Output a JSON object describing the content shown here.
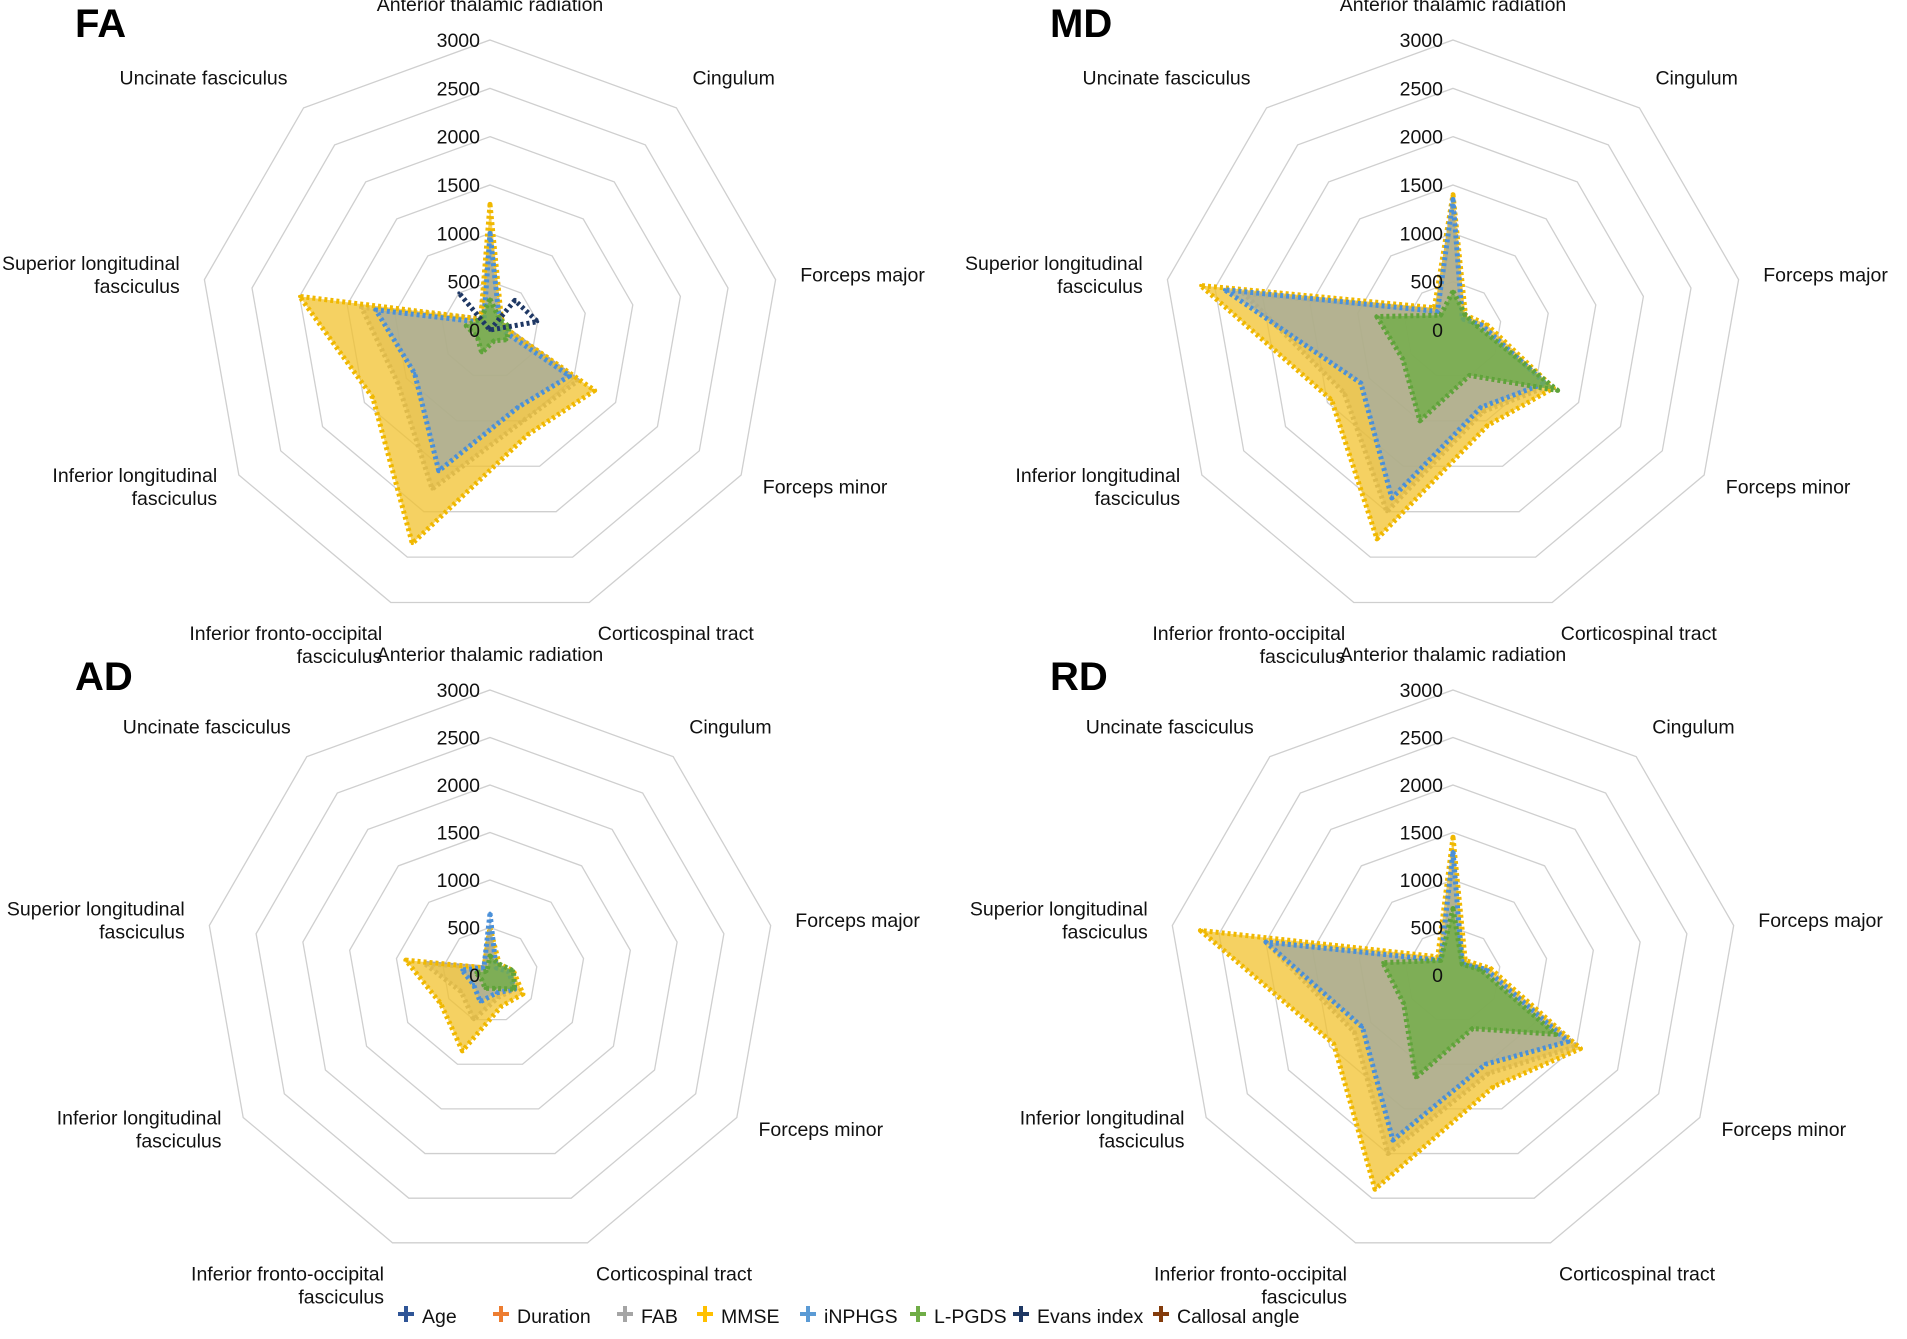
{
  "chart_data": [
    {
      "type": "radar",
      "title": "FA",
      "axes": [
        "Anterior thalamic radiation",
        "Cingulum",
        "Forceps major",
        "Forceps minor",
        "Corticospinal tract",
        "Inferior fronto-occipital fasciculus",
        "Inferior longitudinal fasciculus",
        "Superior longitudinal fasciculus",
        "Uncinate fasciculus"
      ],
      "axis_label_lines": [
        [
          "Anterior thalamic radiation"
        ],
        [
          "Cingulum"
        ],
        [
          "Forceps major"
        ],
        [
          "Forceps minor"
        ],
        [
          "Corticospinal tract"
        ],
        [
          "Inferior fronto-occipital",
          "fasciculus"
        ],
        [
          "Inferior longitudinal",
          "fasciculus"
        ],
        [
          "Superior longitudinal",
          "fasciculus"
        ],
        [
          "Uncinate fasciculus"
        ]
      ],
      "rlim": [
        0,
        3000
      ],
      "ticks": [
        "0",
        "500",
        "1000",
        "1500",
        "2000",
        "2500",
        "3000"
      ],
      "series": [
        {
          "name": "Age",
          "values": [
            0,
            0,
            0,
            0,
            0,
            0,
            0,
            0,
            0
          ]
        },
        {
          "name": "Duration",
          "values": [
            0,
            0,
            0,
            0,
            0,
            0,
            0,
            0,
            0
          ]
        },
        {
          "name": "FAB",
          "values": [
            950,
            150,
            150,
            1050,
            1000,
            1750,
            1100,
            1350,
            150
          ]
        },
        {
          "name": "MMSE",
          "values": [
            1300,
            180,
            150,
            1250,
            1150,
            2350,
            1400,
            2000,
            150
          ]
        },
        {
          "name": "iNPHGS",
          "values": [
            1000,
            150,
            100,
            950,
            850,
            1550,
            900,
            1200,
            100
          ]
        },
        {
          "name": "L-PGDS",
          "values": [
            320,
            150,
            200,
            200,
            120,
            250,
            150,
            250,
            150
          ]
        },
        {
          "name": "Evans index",
          "values": [
            0,
            400,
            500,
            0,
            0,
            0,
            0,
            0,
            500
          ]
        },
        {
          "name": "Callosal angle",
          "values": [
            0,
            0,
            0,
            0,
            0,
            0,
            0,
            0,
            0
          ]
        }
      ]
    },
    {
      "type": "radar",
      "title": "MD",
      "axes": [
        "Anterior thalamic radiation",
        "Cingulum",
        "Forceps major",
        "Forceps minor",
        "Corticospinal tract",
        "Inferior fronto-occipital fasciculus",
        "Inferior longitudinal fasciculus",
        "Superior longitudinal fasciculus",
        "Uncinate fasciculus"
      ],
      "axis_label_lines": [
        [
          "Anterior thalamic radiation"
        ],
        [
          "Cingulum"
        ],
        [
          "Forceps major"
        ],
        [
          "Forceps minor"
        ],
        [
          "Corticospinal tract"
        ],
        [
          "Inferior fronto-occipital",
          "fasciculus"
        ],
        [
          "Inferior longitudinal",
          "fasciculus"
        ],
        [
          "Superior longitudinal",
          "fasciculus"
        ],
        [
          "Uncinate fasciculus"
        ]
      ],
      "rlim": [
        0,
        3000
      ],
      "ticks": [
        "0",
        "500",
        "1000",
        "1500",
        "2000",
        "2500",
        "3000"
      ],
      "series": [
        {
          "name": "Age",
          "values": [
            0,
            0,
            0,
            0,
            0,
            0,
            0,
            0,
            0
          ]
        },
        {
          "name": "Duration",
          "values": [
            0,
            0,
            0,
            0,
            0,
            0,
            0,
            0,
            0
          ]
        },
        {
          "name": "FAB",
          "values": [
            1300,
            150,
            300,
            1150,
            900,
            2000,
            1300,
            2200,
            250
          ]
        },
        {
          "name": "MMSE",
          "values": [
            1400,
            200,
            350,
            1200,
            1050,
            2300,
            1450,
            2650,
            300
          ]
        },
        {
          "name": "iNPHGS",
          "values": [
            1350,
            150,
            300,
            1100,
            850,
            1850,
            1100,
            2400,
            250
          ]
        },
        {
          "name": "L-PGDS",
          "values": [
            400,
            200,
            250,
            1250,
            500,
            1000,
            600,
            800,
            200
          ]
        },
        {
          "name": "Evans index",
          "values": [
            0,
            0,
            0,
            0,
            0,
            0,
            0,
            0,
            0
          ]
        },
        {
          "name": "Callosal angle",
          "values": [
            0,
            0,
            0,
            0,
            0,
            0,
            0,
            0,
            0
          ]
        }
      ]
    },
    {
      "type": "radar",
      "title": "AD",
      "axes": [
        "Anterior thalamic radiation",
        "Cingulum",
        "Forceps major",
        "Forceps minor",
        "Corticospinal tract",
        "Inferior fronto-occipital fasciculus",
        "Inferior longitudinal fasciculus",
        "Superior longitudinal fasciculus",
        "Uncinate fasciculus"
      ],
      "axis_label_lines": [
        [
          "Anterior thalamic radiation"
        ],
        [
          "Cingulum"
        ],
        [
          "Forceps major"
        ],
        [
          "Forceps minor"
        ],
        [
          "Corticospinal tract"
        ],
        [
          "Inferior fronto-occipital",
          "fasciculus"
        ],
        [
          "Inferior longitudinal",
          "fasciculus"
        ],
        [
          "Superior longitudinal",
          "fasciculus"
        ],
        [
          "Uncinate fasciculus"
        ]
      ],
      "rlim": [
        0,
        3000
      ],
      "ticks": [
        "0",
        "500",
        "1000",
        "1500",
        "2000",
        "2500",
        "3000"
      ],
      "series": [
        {
          "name": "Age",
          "values": [
            0,
            0,
            0,
            0,
            0,
            0,
            0,
            0,
            0
          ]
        },
        {
          "name": "Duration",
          "values": [
            0,
            0,
            0,
            0,
            0,
            0,
            0,
            0,
            0
          ]
        },
        {
          "name": "FAB",
          "values": [
            450,
            100,
            200,
            300,
            250,
            500,
            350,
            700,
            100
          ]
        },
        {
          "name": "MMSE",
          "values": [
            500,
            150,
            250,
            400,
            350,
            850,
            600,
            900,
            100
          ]
        },
        {
          "name": "iNPHGS",
          "values": [
            650,
            100,
            200,
            300,
            200,
            300,
            200,
            300,
            100
          ]
        },
        {
          "name": "L-PGDS",
          "values": [
            200,
            150,
            250,
            300,
            150,
            150,
            100,
            150,
            50
          ]
        },
        {
          "name": "Evans index",
          "values": [
            0,
            0,
            0,
            0,
            0,
            0,
            0,
            0,
            0
          ]
        },
        {
          "name": "Callosal angle",
          "values": [
            0,
            0,
            0,
            0,
            0,
            0,
            0,
            0,
            0
          ]
        }
      ]
    },
    {
      "type": "radar",
      "title": "RD",
      "axes": [
        "Anterior thalamic radiation",
        "Cingulum",
        "Forceps major",
        "Forceps minor",
        "Corticospinal tract",
        "Inferior fronto-occipital fasciculus",
        "Inferior longitudinal fasciculus",
        "Superior longitudinal fasciculus",
        "Uncinate fasciculus"
      ],
      "axis_label_lines": [
        [
          "Anterior thalamic radiation"
        ],
        [
          "Cingulum"
        ],
        [
          "Forceps major"
        ],
        [
          "Forceps minor"
        ],
        [
          "Corticospinal tract"
        ],
        [
          "Inferior fronto-occipital",
          "fasciculus"
        ],
        [
          "Inferior longitudinal",
          "fasciculus"
        ],
        [
          "Superior longitudinal",
          "fasciculus"
        ],
        [
          "Uncinate fasciculus"
        ]
      ],
      "rlim": [
        0,
        3000
      ],
      "ticks": [
        "0",
        "500",
        "1000",
        "1500",
        "2000",
        "2500",
        "3000"
      ],
      "series": [
        {
          "name": "Age",
          "values": [
            0,
            0,
            0,
            0,
            0,
            0,
            0,
            0,
            0
          ]
        },
        {
          "name": "Duration",
          "values": [
            0,
            0,
            0,
            0,
            0,
            0,
            0,
            0,
            0
          ]
        },
        {
          "name": "FAB",
          "values": [
            1300,
            150,
            350,
            1500,
            1100,
            2000,
            1200,
            2000,
            200
          ]
        },
        {
          "name": "MMSE",
          "values": [
            1450,
            200,
            400,
            1550,
            1250,
            2400,
            1450,
            2700,
            250
          ]
        },
        {
          "name": "iNPHGS",
          "values": [
            1300,
            150,
            350,
            1400,
            1000,
            1850,
            1100,
            2000,
            200
          ]
        },
        {
          "name": "L-PGDS",
          "values": [
            700,
            150,
            300,
            1250,
            600,
            1150,
            600,
            750,
            200
          ]
        },
        {
          "name": "Evans index",
          "values": [
            0,
            0,
            0,
            0,
            0,
            0,
            0,
            0,
            0
          ]
        },
        {
          "name": "Callosal angle",
          "values": [
            0,
            0,
            0,
            0,
            0,
            0,
            0,
            0,
            0
          ]
        }
      ]
    }
  ],
  "legend": {
    "items": [
      {
        "name": "Age",
        "color": "#2f5597"
      },
      {
        "name": "Duration",
        "color": "#ed7d31"
      },
      {
        "name": "FAB",
        "color": "#a5a5a5"
      },
      {
        "name": "MMSE",
        "color": "#ffc000"
      },
      {
        "name": "iNPHGS",
        "color": "#5b9bd5"
      },
      {
        "name": "L-PGDS",
        "color": "#70ad47"
      },
      {
        "name": "Evans index",
        "color": "#1f3864"
      },
      {
        "name": "Callosal angle",
        "color": "#843c0c"
      }
    ]
  },
  "series_style": {
    "FAB": {
      "fill": "#a5a5a5",
      "fill_opacity": 0.5,
      "stroke": "#a5a5a5"
    },
    "MMSE": {
      "fill": "#f2c12e",
      "fill_opacity": 0.75,
      "stroke": "#f0b800"
    },
    "iNPHGS": {
      "fill": "#8fa5b8",
      "fill_opacity": 0.6,
      "stroke": "#4a90d9"
    },
    "L-PGDS": {
      "fill": "#70ad47",
      "fill_opacity": 0.8,
      "stroke": "#5fa33a"
    },
    "Evans index": {
      "fill": "none",
      "fill_opacity": 0,
      "stroke": "#1f3864"
    }
  }
}
